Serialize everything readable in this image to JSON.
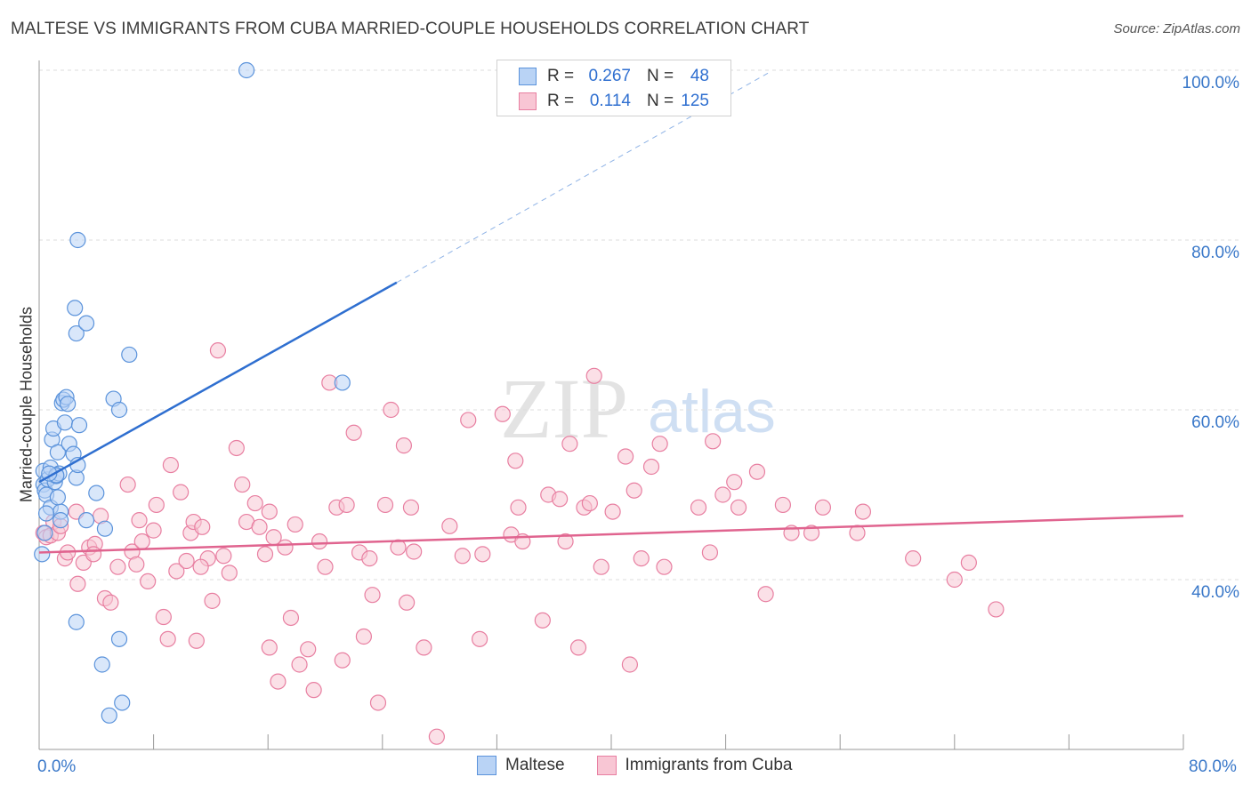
{
  "title": "MALTESE VS IMMIGRANTS FROM CUBA MARRIED-COUPLE HOUSEHOLDS CORRELATION CHART",
  "source": "Source: ZipAtlas.com",
  "watermark": {
    "zip": "ZIP",
    "atlas": "atlas"
  },
  "legend": {
    "rows": [
      {
        "r_label": "R =",
        "r_value": "0.267",
        "n_label": "N =",
        "n_value": "48"
      },
      {
        "r_label": "R =",
        "r_value": "0.114",
        "n_label": "N =",
        "n_value": "125"
      }
    ]
  },
  "bottom_legend": {
    "series1": "Maltese",
    "series2": "Immigrants from Cuba"
  },
  "x_tick_left": "0.0%",
  "x_tick_right": "80.0%",
  "colors": {
    "maltese_fill": "#b9d3f5",
    "maltese_stroke": "#5b93db",
    "maltese_line": "#2f6fd0",
    "cuba_fill": "#f8c6d4",
    "cuba_stroke": "#e87fa1",
    "cuba_line": "#e0648f",
    "axis_text": "#3a78c9",
    "grid": "#dddddd"
  },
  "chart_data": {
    "type": "scatter",
    "title": "MALTESE VS IMMIGRANTS FROM CUBA MARRIED-COUPLE HOUSEHOLDS CORRELATION CHART",
    "xlabel": "",
    "ylabel": "Married-couple Households",
    "xlim": [
      0,
      80
    ],
    "ylim": [
      20,
      100
    ],
    "y_ticks": [
      "40.0%",
      "60.0%",
      "80.0%",
      "100.0%"
    ],
    "y_tick_values": [
      40,
      60,
      80,
      100
    ],
    "grid": true,
    "series": [
      {
        "name": "Maltese",
        "points": [
          [
            0.3,
            52.8
          ],
          [
            0.3,
            51.2
          ],
          [
            0.4,
            50.5
          ],
          [
            0.5,
            50
          ],
          [
            0.6,
            51.8
          ],
          [
            0.8,
            48.5
          ],
          [
            0.8,
            53.2
          ],
          [
            0.9,
            56.5
          ],
          [
            1.0,
            57.8
          ],
          [
            1.1,
            51.5
          ],
          [
            1.2,
            52.2
          ],
          [
            1.3,
            55.0
          ],
          [
            1.4,
            52.5
          ],
          [
            1.5,
            48.0
          ],
          [
            1.5,
            47.0
          ],
          [
            1.6,
            60.8
          ],
          [
            1.7,
            61.2
          ],
          [
            1.8,
            58.5
          ],
          [
            1.9,
            61.5
          ],
          [
            2.0,
            60.7
          ],
          [
            2.1,
            56.0
          ],
          [
            2.4,
            54.8
          ],
          [
            2.6,
            52.0
          ],
          [
            2.7,
            53.5
          ],
          [
            2.8,
            58.2
          ],
          [
            2.5,
            72.0
          ],
          [
            2.6,
            69.0
          ],
          [
            2.7,
            80.0
          ],
          [
            3.3,
            70.2
          ],
          [
            4.0,
            50.2
          ],
          [
            5.2,
            61.3
          ],
          [
            5.6,
            60.0
          ],
          [
            6.3,
            66.5
          ],
          [
            4.6,
            46.0
          ],
          [
            2.6,
            35.0
          ],
          [
            4.4,
            30.0
          ],
          [
            5.6,
            33.0
          ],
          [
            4.9,
            24.0
          ],
          [
            5.8,
            25.5
          ],
          [
            3.3,
            47.0
          ],
          [
            0.2,
            43.0
          ],
          [
            0.4,
            45.5
          ],
          [
            0.5,
            47.8
          ],
          [
            14.5,
            100
          ],
          [
            21.2,
            63.2
          ],
          [
            1.2,
            52.3
          ],
          [
            1.3,
            49.7
          ],
          [
            0.7,
            52.5
          ]
        ]
      },
      {
        "name": "Immigrants from Cuba",
        "points": [
          [
            0.3,
            45.5
          ],
          [
            0.5,
            45.0
          ],
          [
            0.8,
            45.2
          ],
          [
            1.0,
            46.8
          ],
          [
            1.3,
            45.5
          ],
          [
            1.5,
            46.3
          ],
          [
            1.8,
            42.5
          ],
          [
            2.0,
            43.2
          ],
          [
            2.6,
            48.0
          ],
          [
            2.7,
            39.5
          ],
          [
            3.1,
            42.0
          ],
          [
            3.5,
            43.8
          ],
          [
            3.9,
            44.2
          ],
          [
            4.3,
            47.5
          ],
          [
            4.6,
            37.8
          ],
          [
            5.0,
            37.3
          ],
          [
            5.5,
            41.5
          ],
          [
            6.2,
            51.2
          ],
          [
            6.5,
            43.3
          ],
          [
            7.0,
            47.0
          ],
          [
            7.2,
            44.5
          ],
          [
            7.6,
            39.8
          ],
          [
            8.0,
            45.8
          ],
          [
            8.2,
            48.8
          ],
          [
            8.7,
            35.6
          ],
          [
            9.0,
            33.0
          ],
          [
            9.2,
            53.5
          ],
          [
            9.6,
            41.0
          ],
          [
            9.9,
            50.3
          ],
          [
            10.3,
            42.2
          ],
          [
            10.6,
            45.5
          ],
          [
            10.8,
            46.8
          ],
          [
            11.0,
            32.8
          ],
          [
            11.4,
            46.2
          ],
          [
            11.8,
            42.5
          ],
          [
            12.1,
            37.5
          ],
          [
            12.5,
            67.0
          ],
          [
            12.9,
            42.8
          ],
          [
            13.3,
            40.8
          ],
          [
            13.8,
            55.5
          ],
          [
            14.2,
            51.2
          ],
          [
            14.5,
            46.8
          ],
          [
            15.1,
            49.0
          ],
          [
            15.4,
            46.2
          ],
          [
            15.8,
            43.0
          ],
          [
            16.1,
            32.0
          ],
          [
            16.4,
            45.0
          ],
          [
            16.7,
            28.0
          ],
          [
            17.2,
            43.8
          ],
          [
            17.6,
            35.5
          ],
          [
            17.9,
            46.5
          ],
          [
            18.2,
            30.0
          ],
          [
            18.8,
            31.8
          ],
          [
            19.2,
            27.0
          ],
          [
            19.6,
            44.5
          ],
          [
            20.0,
            41.5
          ],
          [
            20.3,
            63.2
          ],
          [
            20.8,
            48.5
          ],
          [
            21.2,
            30.5
          ],
          [
            21.5,
            48.8
          ],
          [
            22.0,
            57.3
          ],
          [
            22.4,
            43.2
          ],
          [
            22.7,
            33.3
          ],
          [
            23.3,
            38.2
          ],
          [
            23.7,
            25.5
          ],
          [
            24.2,
            48.8
          ],
          [
            24.6,
            60.0
          ],
          [
            25.1,
            43.8
          ],
          [
            25.5,
            55.8
          ],
          [
            25.7,
            37.3
          ],
          [
            26.0,
            48.5
          ],
          [
            26.2,
            43.3
          ],
          [
            26.9,
            32.0
          ],
          [
            27.8,
            21.5
          ],
          [
            28.7,
            46.3
          ],
          [
            29.6,
            42.8
          ],
          [
            30.0,
            58.8
          ],
          [
            30.8,
            33.0
          ],
          [
            31.0,
            43.0
          ],
          [
            32.4,
            59.5
          ],
          [
            33.0,
            45.3
          ],
          [
            33.3,
            54.0
          ],
          [
            33.5,
            48.5
          ],
          [
            33.8,
            44.5
          ],
          [
            35.2,
            35.2
          ],
          [
            35.6,
            50.0
          ],
          [
            36.4,
            49.5
          ],
          [
            36.8,
            44.5
          ],
          [
            37.1,
            56.0
          ],
          [
            37.7,
            32.0
          ],
          [
            38.1,
            48.5
          ],
          [
            38.5,
            49.0
          ],
          [
            38.8,
            64.0
          ],
          [
            39.3,
            41.5
          ],
          [
            40.1,
            48.0
          ],
          [
            41.0,
            54.5
          ],
          [
            41.3,
            30.0
          ],
          [
            41.6,
            50.5
          ],
          [
            42.1,
            42.5
          ],
          [
            42.8,
            53.3
          ],
          [
            43.4,
            56.0
          ],
          [
            43.7,
            41.5
          ],
          [
            46.1,
            48.5
          ],
          [
            46.9,
            43.2
          ],
          [
            47.1,
            56.3
          ],
          [
            47.8,
            50.0
          ],
          [
            48.6,
            51.5
          ],
          [
            48.9,
            48.5
          ],
          [
            50.2,
            52.7
          ],
          [
            50.8,
            38.3
          ],
          [
            52.0,
            48.8
          ],
          [
            52.6,
            45.5
          ],
          [
            54.0,
            45.5
          ],
          [
            54.8,
            48.5
          ],
          [
            57.2,
            45.5
          ],
          [
            57.6,
            48.0
          ],
          [
            61.1,
            42.5
          ],
          [
            64.0,
            40.0
          ],
          [
            65.0,
            42.0
          ],
          [
            66.9,
            36.5
          ],
          [
            3.8,
            43.0
          ],
          [
            6.8,
            41.8
          ],
          [
            11.3,
            41.5
          ],
          [
            16.1,
            48.0
          ],
          [
            23.1,
            42.5
          ]
        ]
      }
    ],
    "trendlines": [
      {
        "series": "Maltese",
        "x1": 0,
        "y1": 51.5,
        "x2": 25,
        "y2": 75,
        "dashed_extension_to": [
          51,
          99.7
        ]
      },
      {
        "series": "Immigrants from Cuba",
        "x1": 0,
        "y1": 43.2,
        "x2": 80,
        "y2": 47.5
      }
    ]
  }
}
